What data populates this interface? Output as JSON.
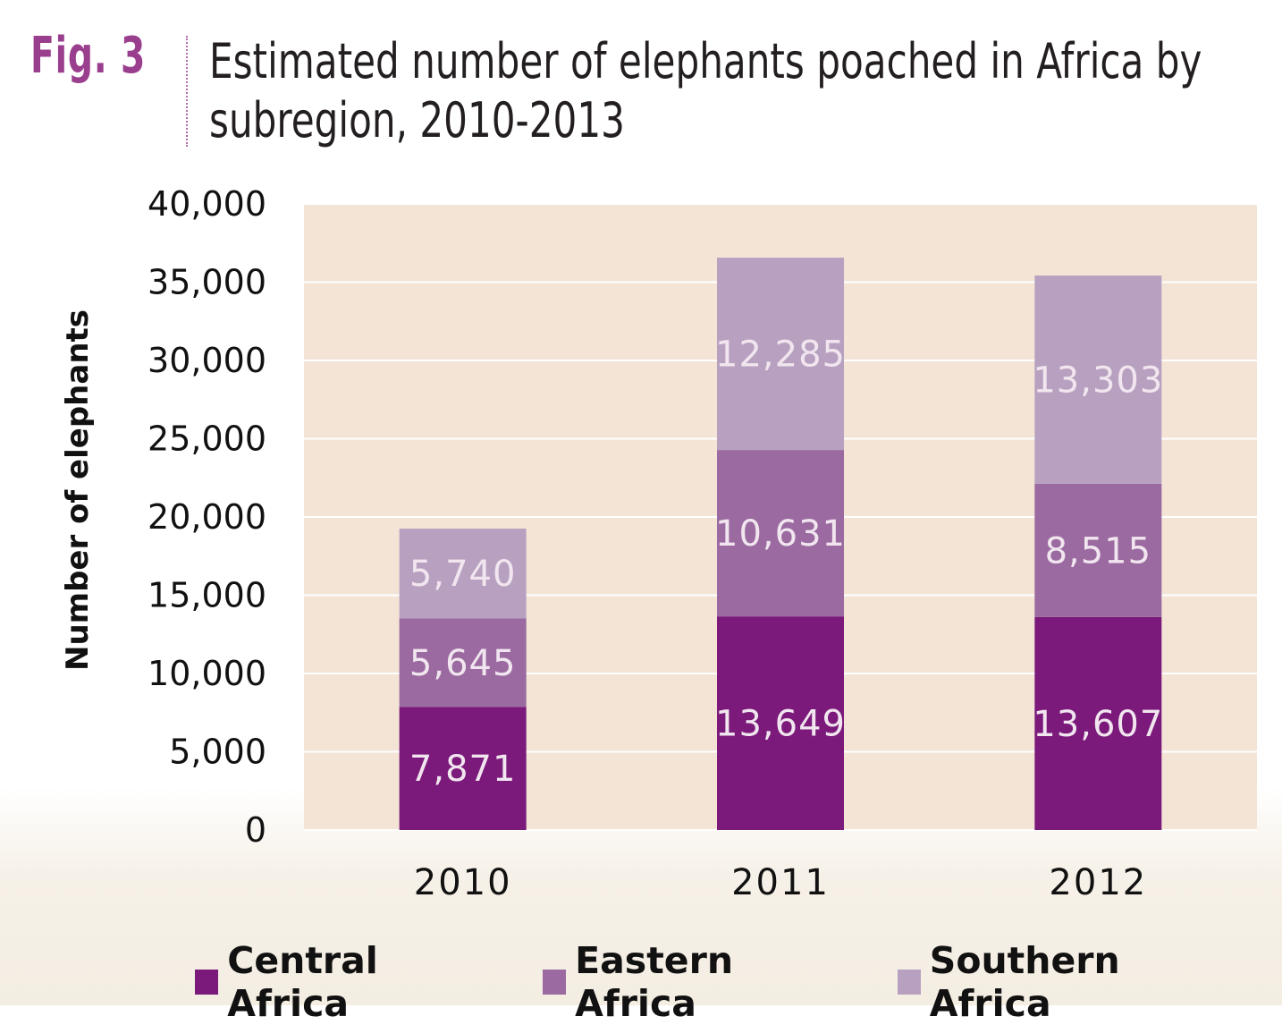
{
  "header": {
    "fig_label": "Fig. 3",
    "title_line1": "Estimated number of elephants poached in Africa by",
    "title_line2": "subregion, 2010-2013"
  },
  "chart_data": {
    "type": "bar",
    "stacked": true,
    "title": "Estimated number of elephants poached in Africa by subregion, 2010-2013",
    "xlabel": "",
    "ylabel": "Number of elephants",
    "categories": [
      "2010",
      "2011",
      "2012"
    ],
    "ylim": [
      0,
      40000
    ],
    "yticks": [
      0,
      5000,
      10000,
      15000,
      20000,
      25000,
      30000,
      35000,
      40000
    ],
    "ytick_labels": [
      "0",
      "5,000",
      "10,000",
      "15,000",
      "20,000",
      "25,000",
      "30,000",
      "35,000",
      "40,000"
    ],
    "grid": true,
    "legend_position": "bottom",
    "series": [
      {
        "name": "Central Africa",
        "color": "#7b1a7b",
        "values": [
          7871,
          13649,
          13607
        ],
        "labels": [
          "7,871",
          "13,649",
          "13,607"
        ]
      },
      {
        "name": "Eastern Africa",
        "color": "#9b6aa0",
        "values": [
          5645,
          10631,
          8515
        ],
        "labels": [
          "5,645",
          "10,631",
          "8,515"
        ]
      },
      {
        "name": "Southern Africa",
        "color": "#b8a1c0",
        "values": [
          5740,
          12285,
          13303
        ],
        "labels": [
          "5,740",
          "12,285",
          "13,303"
        ]
      }
    ],
    "plot_background": "#f3e4d6",
    "gridline_color": "#ffffff"
  }
}
